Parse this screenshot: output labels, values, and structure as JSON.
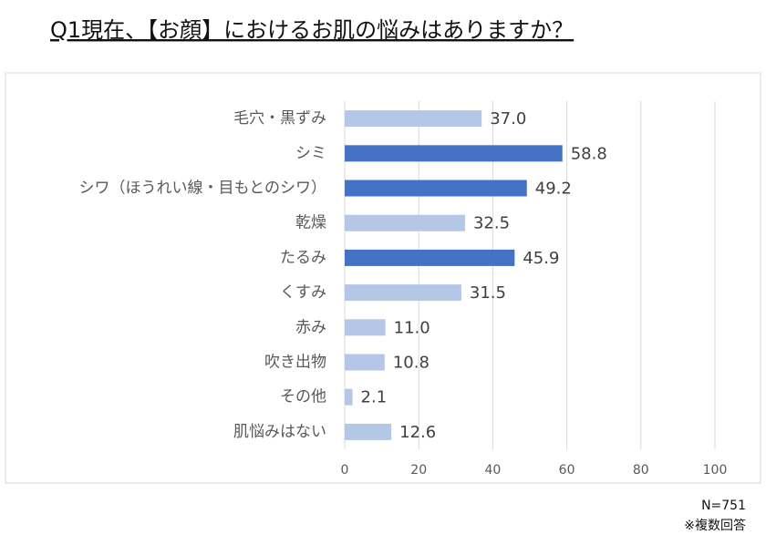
{
  "chart_data": {
    "type": "bar",
    "orientation": "horizontal",
    "title": "Q1現在、【お顔】におけるお肌の悩みはありますか？",
    "categories": [
      "毛穴・黒ずみ",
      "シミ",
      "シワ（ほうれい線・目もとのシワ）",
      "乾燥",
      "たるみ",
      "くすみ",
      "赤み",
      "吹き出物",
      "その他",
      "肌悩みはない"
    ],
    "values": [
      37.0,
      58.8,
      49.2,
      32.5,
      45.9,
      31.5,
      11.0,
      10.8,
      2.1,
      12.6
    ],
    "value_labels": [
      "37.0",
      "58.8",
      "49.2",
      "32.5",
      "45.9",
      "31.5",
      "11.0",
      "10.8",
      "2.1",
      "12.6"
    ],
    "colors": [
      "#b4c7e7",
      "#4472c4",
      "#4472c4",
      "#b4c7e7",
      "#4472c4",
      "#b4c7e7",
      "#b4c7e7",
      "#b4c7e7",
      "#b4c7e7",
      "#b4c7e7"
    ],
    "xlim": [
      0,
      100
    ],
    "xticks": [
      0,
      20,
      40,
      60,
      80,
      100
    ],
    "grid": true,
    "notes": [
      "N=751",
      "※複数回答"
    ]
  }
}
